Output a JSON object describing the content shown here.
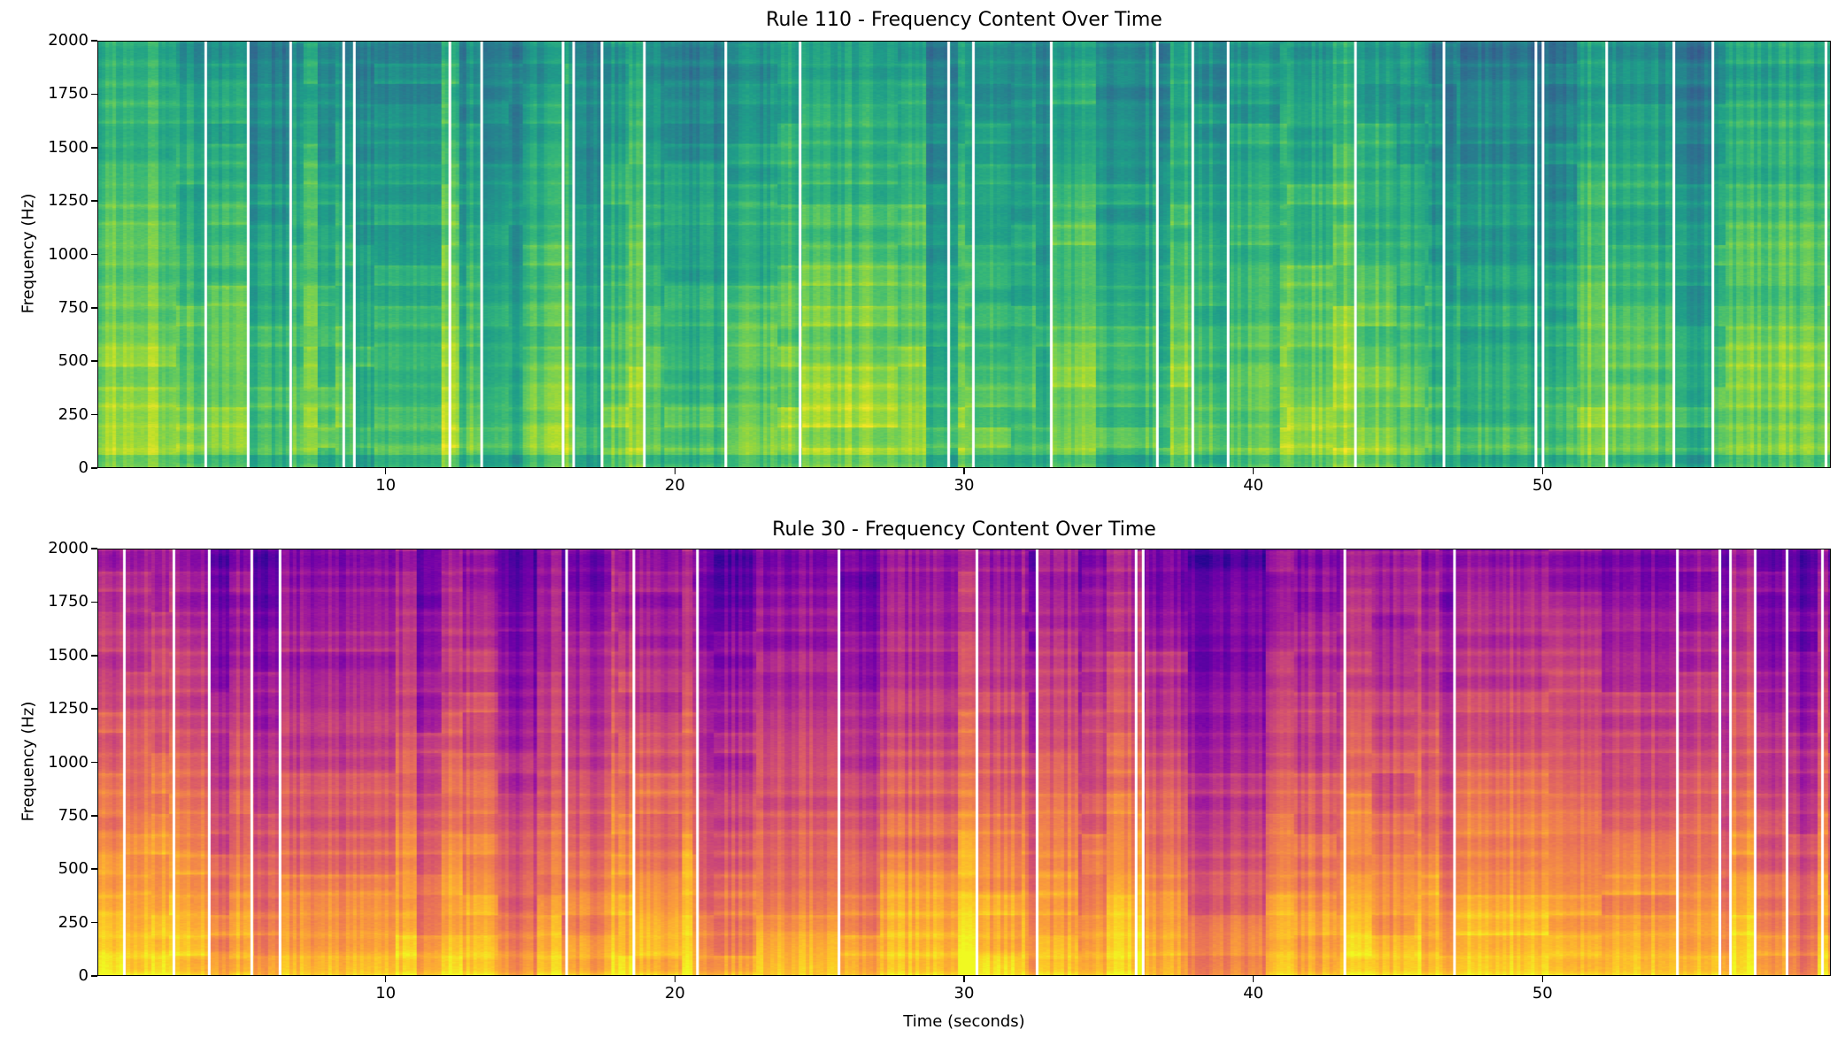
{
  "chart_data": [
    {
      "type": "heatmap",
      "title": "Rule 110 - Frequency Content Over Time",
      "xlabel": "",
      "ylabel": "Frequency (Hz)",
      "xlim": [
        0.03,
        59.97
      ],
      "ylim": [
        0,
        2000
      ],
      "xticks": [
        10,
        20,
        30,
        40,
        50
      ],
      "yticks": [
        0,
        250,
        500,
        750,
        1000,
        1250,
        1500,
        1750,
        2000
      ],
      "colormap": "viridis",
      "grid": false
    },
    {
      "type": "heatmap",
      "title": "Rule 30 - Frequency Content Over Time",
      "xlabel": "Time (seconds)",
      "ylabel": "Frequency (Hz)",
      "xlim": [
        0.03,
        59.97
      ],
      "ylim": [
        0,
        2000
      ],
      "xticks": [
        10,
        20,
        30,
        40,
        50
      ],
      "yticks": [
        0,
        250,
        500,
        750,
        1000,
        1250,
        1500,
        1750,
        2000
      ],
      "colormap": "plasma",
      "grid": false
    }
  ]
}
